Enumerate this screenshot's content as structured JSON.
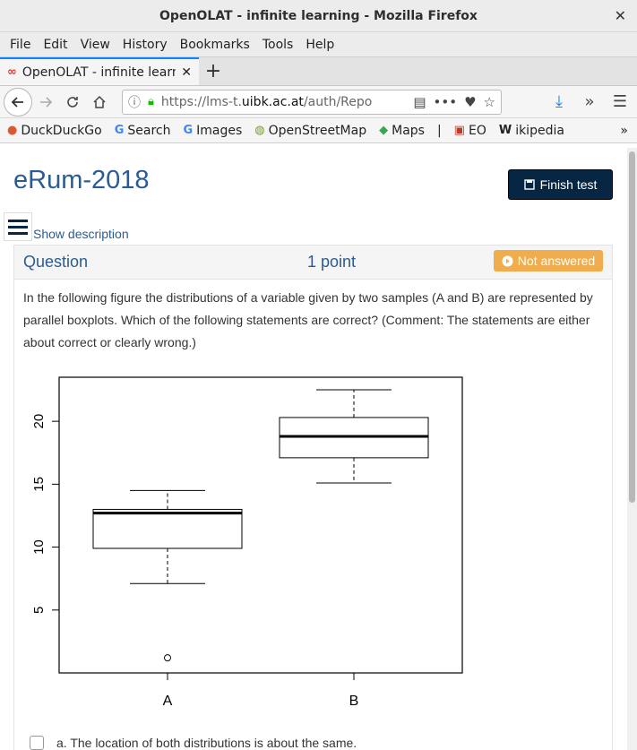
{
  "window": {
    "title": "OpenOLAT - infinite learning - Mozilla Firefox",
    "close_glyph": "✕"
  },
  "menu": [
    "File",
    "Edit",
    "View",
    "History",
    "Bookmarks",
    "Tools",
    "Help"
  ],
  "tab": {
    "label": "OpenOLAT - infinite learning - Mozilla Firefox",
    "close": "✕",
    "new": "+"
  },
  "url": {
    "prefix": "https://lms-t.",
    "domain": "uibk.ac.at",
    "path": "/auth/Repo"
  },
  "bookmarks": [
    {
      "label": "DuckDuckGo",
      "icon": "duckduckgo-icon"
    },
    {
      "label": "Search",
      "icon": "google-icon"
    },
    {
      "label": "Images",
      "icon": "google-icon"
    },
    {
      "label": "OpenStreetMap",
      "icon": "osm-icon"
    },
    {
      "label": "Maps",
      "icon": "maps-icon"
    },
    {
      "label": "EO",
      "icon": "eo-icon"
    },
    {
      "label": "ikipedia",
      "icon": "wikipedia-icon"
    }
  ],
  "page": {
    "title": "eRum-2018",
    "finish_label": "Finish test",
    "show_description": "Show description",
    "question_label": "Question",
    "points": "1 point",
    "status": "Not answered",
    "question_text": "In the following figure the distributions of a variable given by two samples (A and B) are represented by parallel boxplots. Which of the following statements are correct? (Comment: The statements are either about correct or clearly wrong.)",
    "answer_a": "a. The location of both distributions is about the same."
  },
  "chart_data": {
    "type": "boxplot",
    "categories": [
      "A",
      "B"
    ],
    "ylim": [
      0,
      23.5
    ],
    "yticks": [
      5,
      10,
      15,
      20
    ],
    "boxes": [
      {
        "name": "A",
        "whisker_low": 7.1,
        "q1": 9.9,
        "median": 12.7,
        "q3": 13.0,
        "whisker_high": 14.5,
        "outliers": [
          1.2
        ]
      },
      {
        "name": "B",
        "whisker_low": 15.1,
        "q1": 17.1,
        "median": 18.8,
        "q3": 20.3,
        "whisker_high": 22.5,
        "outliers": []
      }
    ]
  }
}
